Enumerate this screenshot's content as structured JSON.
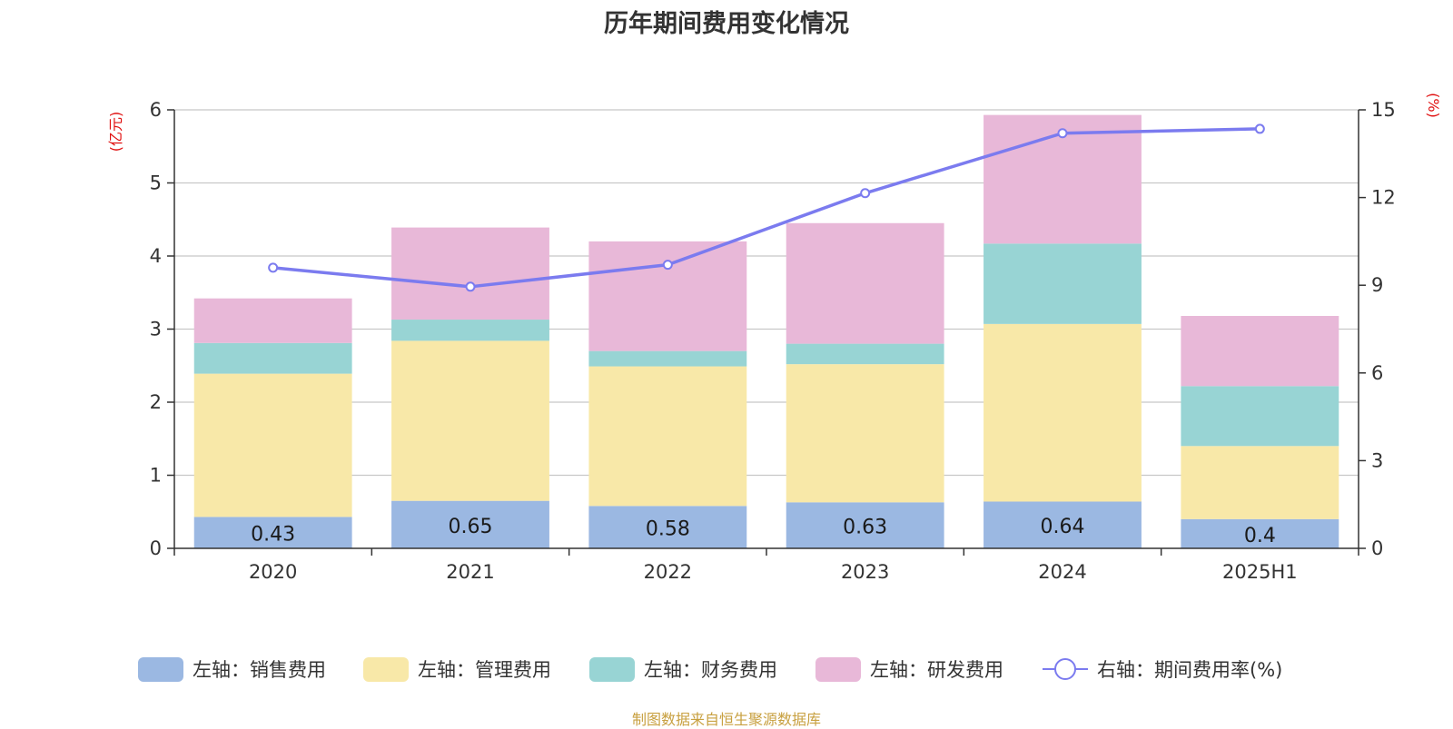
{
  "chart_data": {
    "type": "bar",
    "title": "历年期间费用变化情况",
    "source_note": "制图数据来自恒生聚源数据库",
    "categories": [
      "2020",
      "2021",
      "2022",
      "2023",
      "2024",
      "2025H1"
    ],
    "y_left": {
      "unit": "(亿元)",
      "range": [
        0,
        6
      ],
      "ticks": [
        "0",
        "1",
        "2",
        "3",
        "4",
        "5",
        "6"
      ]
    },
    "y_right": {
      "unit": "(%)",
      "range": [
        0,
        15
      ],
      "ticks": [
        "0",
        "3",
        "6",
        "9",
        "12",
        "15"
      ]
    },
    "stacked": true,
    "grid": true,
    "legend_position": "bottom",
    "series": [
      {
        "name": "左轴：销售费用",
        "axis": "left",
        "color": "#9bb8e2",
        "values": [
          0.43,
          0.65,
          0.58,
          0.63,
          0.64,
          0.4
        ],
        "labels": [
          "0.43",
          "0.65",
          "0.58",
          "0.63",
          "0.64",
          "0.4"
        ]
      },
      {
        "name": "左轴：管理费用",
        "axis": "left",
        "color": "#f8e8a8",
        "values": [
          1.96,
          2.19,
          1.91,
          1.89,
          2.43,
          1.0
        ]
      },
      {
        "name": "左轴：财务费用",
        "axis": "left",
        "color": "#98d4d4",
        "values": [
          0.42,
          0.29,
          0.21,
          0.28,
          1.1,
          0.82
        ]
      },
      {
        "name": "左轴：研发费用",
        "axis": "left",
        "color": "#e8b8d8",
        "values": [
          0.61,
          1.26,
          1.5,
          1.65,
          1.76,
          0.96
        ]
      },
      {
        "name": "右轴：期间费用率(%)",
        "axis": "right",
        "type": "line",
        "color": "#7b7bef",
        "values": [
          9.6,
          8.95,
          9.7,
          12.15,
          14.2,
          14.35
        ]
      }
    ]
  }
}
